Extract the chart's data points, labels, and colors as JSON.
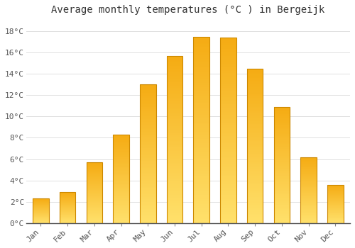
{
  "title": "Average monthly temperatures (°C ) in Bergeijk",
  "months": [
    "Jan",
    "Feb",
    "Mar",
    "Apr",
    "May",
    "Jun",
    "Jul",
    "Aug",
    "Sep",
    "Oct",
    "Nov",
    "Dec"
  ],
  "values": [
    2.3,
    2.9,
    5.7,
    8.3,
    13.0,
    15.7,
    17.5,
    17.4,
    14.5,
    10.9,
    6.2,
    3.6
  ],
  "bar_color_bottom": "#FFD966",
  "bar_color_top": "#F5A800",
  "bar_border_color": "#CC8800",
  "ylim": [
    0,
    19
  ],
  "yticks": [
    0,
    2,
    4,
    6,
    8,
    10,
    12,
    14,
    16,
    18
  ],
  "ytick_labels": [
    "0°C",
    "2°C",
    "4°C",
    "6°C",
    "8°C",
    "10°C",
    "12°C",
    "14°C",
    "16°C",
    "18°C"
  ],
  "background_color": "#FFFFFF",
  "grid_color": "#E0E0E0",
  "title_fontsize": 10,
  "tick_fontsize": 8,
  "figsize": [
    5.0,
    3.5
  ],
  "dpi": 100
}
